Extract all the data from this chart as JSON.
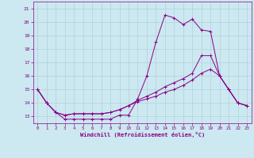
{
  "xlabel": "Windchill (Refroidissement éolien,°C)",
  "xlim": [
    -0.5,
    23.5
  ],
  "ylim": [
    12.5,
    21.5
  ],
  "yticks": [
    13,
    14,
    15,
    16,
    17,
    18,
    19,
    20,
    21
  ],
  "xticks": [
    0,
    1,
    2,
    3,
    4,
    5,
    6,
    7,
    8,
    9,
    10,
    11,
    12,
    13,
    14,
    15,
    16,
    17,
    18,
    19,
    20,
    21,
    22,
    23
  ],
  "bg_color": "#cce8f0",
  "grid_color": "#aaccd8",
  "line_color": "#880088",
  "series": [
    [
      15.0,
      14.0,
      13.3,
      12.8,
      12.8,
      12.8,
      12.8,
      12.8,
      12.8,
      13.1,
      13.1,
      14.3,
      16.0,
      18.5,
      20.5,
      20.3,
      19.8,
      20.2,
      19.4,
      19.3,
      16.0,
      15.0,
      14.0,
      13.8
    ],
    [
      15.0,
      14.0,
      13.3,
      13.1,
      13.2,
      13.2,
      13.2,
      13.2,
      13.3,
      13.5,
      13.8,
      14.1,
      14.3,
      14.5,
      14.8,
      15.0,
      15.3,
      15.7,
      16.2,
      16.5,
      16.0,
      15.0,
      14.0,
      13.8
    ],
    [
      15.0,
      14.0,
      13.3,
      13.1,
      13.2,
      13.2,
      13.2,
      13.2,
      13.3,
      13.5,
      13.8,
      14.2,
      14.5,
      14.8,
      15.2,
      15.5,
      15.8,
      16.2,
      17.5,
      17.5,
      16.0,
      15.0,
      14.0,
      13.8
    ]
  ],
  "tick_fontsize": 4.2,
  "xlabel_fontsize": 5.0,
  "lw": 0.7,
  "marker_size": 2.5
}
